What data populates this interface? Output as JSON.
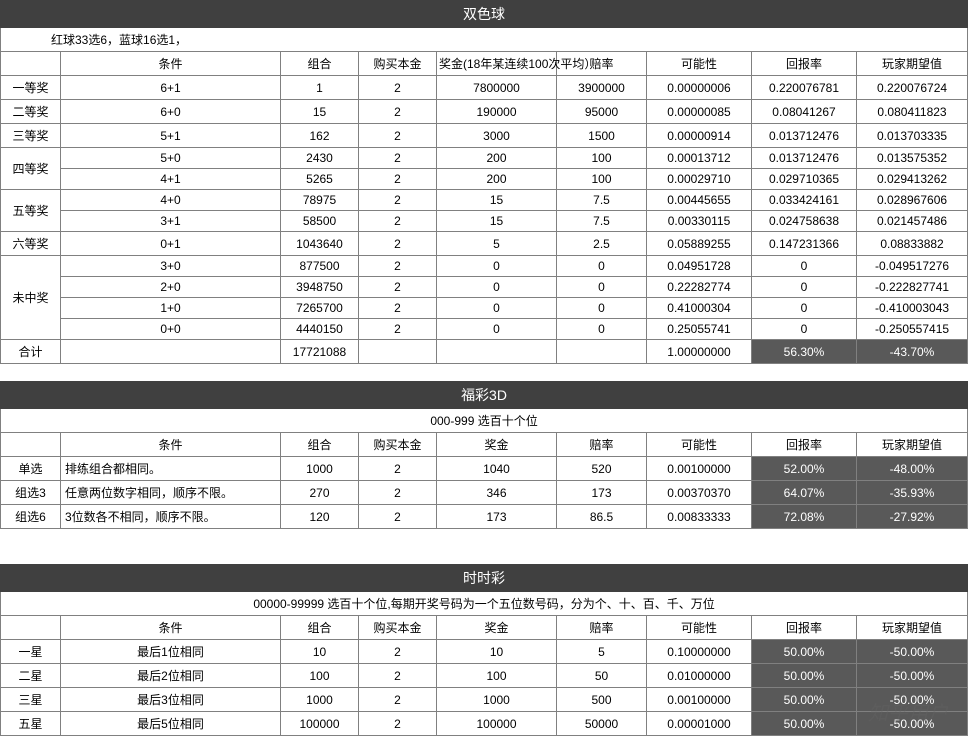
{
  "watermark": "知乎用户",
  "section1": {
    "title": "双色球",
    "subtitle": "红球33选6，蓝球16选1，",
    "headers": [
      "",
      "条件",
      "组合",
      "购买本金",
      "奖金(18年某连续100次平均）",
      "赔率",
      "可能性",
      "回报率",
      "玩家期望值"
    ],
    "groups": [
      {
        "label": "一等奖",
        "rows": [
          [
            "6+1",
            "1",
            "2",
            "7800000",
            "3900000",
            "0.00000006",
            "0.220076781",
            "0.220076724"
          ]
        ]
      },
      {
        "label": "二等奖",
        "rows": [
          [
            "6+0",
            "15",
            "2",
            "190000",
            "95000",
            "0.00000085",
            "0.08041267",
            "0.080411823"
          ]
        ]
      },
      {
        "label": "三等奖",
        "rows": [
          [
            "5+1",
            "162",
            "2",
            "3000",
            "1500",
            "0.00000914",
            "0.013712476",
            "0.013703335"
          ]
        ]
      },
      {
        "label": "四等奖",
        "rows": [
          [
            "5+0",
            "2430",
            "2",
            "200",
            "100",
            "0.00013712",
            "0.013712476",
            "0.013575352"
          ],
          [
            "4+1",
            "5265",
            "2",
            "200",
            "100",
            "0.00029710",
            "0.029710365",
            "0.029413262"
          ]
        ]
      },
      {
        "label": "五等奖",
        "rows": [
          [
            "4+0",
            "78975",
            "2",
            "15",
            "7.5",
            "0.00445655",
            "0.033424161",
            "0.028967606"
          ],
          [
            "3+1",
            "58500",
            "2",
            "15",
            "7.5",
            "0.00330115",
            "0.024758638",
            "0.021457486"
          ]
        ]
      },
      {
        "label": "六等奖",
        "rows": [
          [
            "0+1",
            "1043640",
            "2",
            "5",
            "2.5",
            "0.05889255",
            "0.147231366",
            "0.08833882"
          ]
        ]
      },
      {
        "label": "未中奖",
        "rows": [
          [
            "3+0",
            "877500",
            "2",
            "0",
            "0",
            "0.04951728",
            "0",
            "-0.049517276"
          ],
          [
            "2+0",
            "3948750",
            "2",
            "0",
            "0",
            "0.22282774",
            "0",
            "-0.222827741"
          ],
          [
            "1+0",
            "7265700",
            "2",
            "0",
            "0",
            "0.41000304",
            "0",
            "-0.410003043"
          ],
          [
            "0+0",
            "4440150",
            "2",
            "0",
            "0",
            "0.25055741",
            "0",
            "-0.250557415"
          ]
        ]
      }
    ],
    "total": {
      "label": "合计",
      "row": [
        "",
        "17721088",
        "",
        "",
        "",
        "1.00000000",
        "56.30%",
        "-43.70%"
      ],
      "shaded": [
        7,
        8
      ]
    }
  },
  "section2": {
    "title": "福彩3D",
    "subtitle": "000-999  选百十个位",
    "headers": [
      "",
      "条件",
      "组合",
      "购买本金",
      "奖金",
      "赔率",
      "可能性",
      "回报率",
      "玩家期望值"
    ],
    "rows": [
      {
        "label": "单选",
        "cells": [
          "排练组合都相同。",
          "1000",
          "2",
          "1040",
          "520",
          "0.00100000",
          "52.00%",
          "-48.00%"
        ],
        "shaded": [
          7,
          8
        ]
      },
      {
        "label": "组选3",
        "cells": [
          "任意两位数字相同，顺序不限。",
          "270",
          "2",
          "346",
          "173",
          "0.00370370",
          "64.07%",
          "-35.93%"
        ],
        "shaded": [
          7,
          8
        ]
      },
      {
        "label": "组选6",
        "cells": [
          "3位数各不相同，顺序不限。",
          "120",
          "2",
          "173",
          "86.5",
          "0.00833333",
          "72.08%",
          "-27.92%"
        ],
        "shaded": [
          7,
          8
        ]
      }
    ]
  },
  "section3": {
    "title": "时时彩",
    "subtitle": "00000-99999  选百十个位,每期开奖号码为一个五位数号码，分为个、十、百、千、万位",
    "headers": [
      "",
      "条件",
      "组合",
      "购买本金",
      "奖金",
      "赔率",
      "可能性",
      "回报率",
      "玩家期望值"
    ],
    "rows": [
      {
        "label": "一星",
        "cells": [
          "最后1位相同",
          "10",
          "2",
          "10",
          "5",
          "0.10000000",
          "50.00%",
          "-50.00%"
        ],
        "shaded": [
          7,
          8
        ]
      },
      {
        "label": "二星",
        "cells": [
          "最后2位相同",
          "100",
          "2",
          "100",
          "50",
          "0.01000000",
          "50.00%",
          "-50.00%"
        ],
        "shaded": [
          7,
          8
        ]
      },
      {
        "label": "三星",
        "cells": [
          "最后3位相同",
          "1000",
          "2",
          "1000",
          "500",
          "0.00100000",
          "50.00%",
          "-50.00%"
        ],
        "shaded": [
          7,
          8
        ]
      },
      {
        "label": "五星",
        "cells": [
          "最后5位相同",
          "100000",
          "2",
          "100000",
          "50000",
          "0.00001000",
          "50.00%",
          "-50.00%"
        ],
        "shaded": [
          7,
          8
        ]
      }
    ]
  }
}
